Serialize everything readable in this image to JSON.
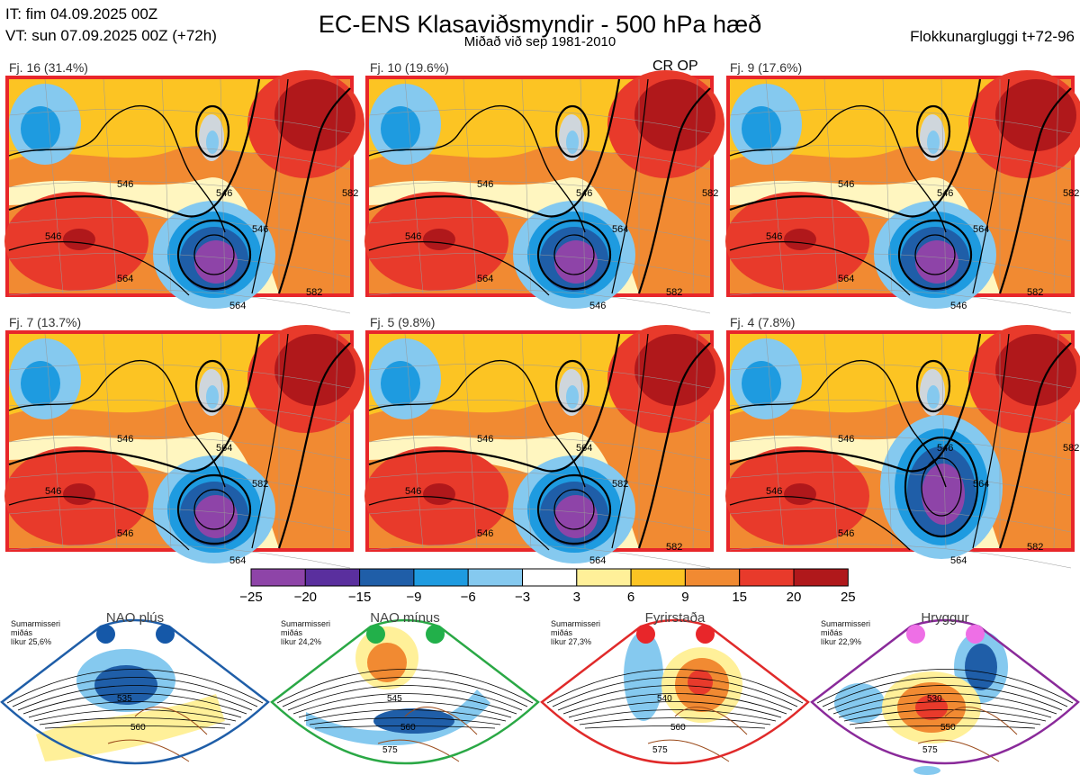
{
  "header": {
    "it_line": "IT: fim 04.09.2025 00Z",
    "vt_line": "VT: sun 07.09.2025 00Z  (+72h)",
    "title": "EC-ENS Klasaviðsmyndir - 500 hPa hæð",
    "subtitle": "Miðað við sep 1981-2010",
    "window_label": "Flokkunargluggi t+72-96"
  },
  "cr_op_label": "CR OP",
  "panels": [
    {
      "label": "Fj. 16 (31.4%)",
      "contours": [
        "546",
        "546",
        "546",
        "564",
        "564",
        "546",
        "582",
        "582"
      ]
    },
    {
      "label": "Fj. 10 (19.6%)",
      "contours": [
        "546",
        "546",
        "546",
        "564",
        "546",
        "564",
        "582",
        "582"
      ]
    },
    {
      "label": "Fj. 9 (17.6%)",
      "contours": [
        "546",
        "546",
        "546",
        "564",
        "546",
        "564",
        "582",
        "582"
      ]
    },
    {
      "label": "Fj. 7 (13.7%)",
      "contours": [
        "546",
        "546",
        "564",
        "546",
        "564",
        "582"
      ]
    },
    {
      "label": "Fj. 5 (9.8%)",
      "contours": [
        "546",
        "546",
        "564",
        "546",
        "564",
        "582",
        "582"
      ]
    },
    {
      "label": "Fj. 4 (7.8%)",
      "contours": [
        "546",
        "546",
        "546",
        "546",
        "564",
        "564",
        "582",
        "582"
      ]
    }
  ],
  "colorbar": {
    "ticks": [
      "−25",
      "−20",
      "−15",
      "−9",
      "−6",
      "−3",
      "3",
      "6",
      "9",
      "15",
      "20",
      "25"
    ],
    "colors": [
      "#8e44a8",
      "#5a2f9e",
      "#1f5ea8",
      "#1e9be0",
      "#85c9ef",
      "#ffffff",
      "#fff099",
      "#fcc423",
      "#f18a32",
      "#e83a2b",
      "#b0181b"
    ]
  },
  "regimes": [
    {
      "name": "NAO plús",
      "description": "Sumarmisseri\nmiðás\nlíkur 25,6%",
      "color": "#1f5ea8",
      "dot_color": "#1558a8",
      "contours": [
        "535",
        "560"
      ]
    },
    {
      "name": "NAO mínus",
      "description": "Sumarmisseri\nmiðás\nlíkur 24,2%",
      "color": "#2aa845",
      "dot_color": "#22b04a",
      "contours": [
        "545",
        "560",
        "575"
      ]
    },
    {
      "name": "Fyrirstaða",
      "description": "Sumarmisseri\nmiðás\nlíkur 27,3%",
      "color": "#e02a2a",
      "dot_color": "#e8262a",
      "contours": [
        "540",
        "560",
        "575"
      ]
    },
    {
      "name": "Hryggur",
      "description": "Sumarmisseri\nmiðás\nlíkur 22,9%",
      "color": "#8a2a9a",
      "dot_color": "#ee6fe6",
      "contours": [
        "530",
        "550",
        "575"
      ]
    }
  ]
}
